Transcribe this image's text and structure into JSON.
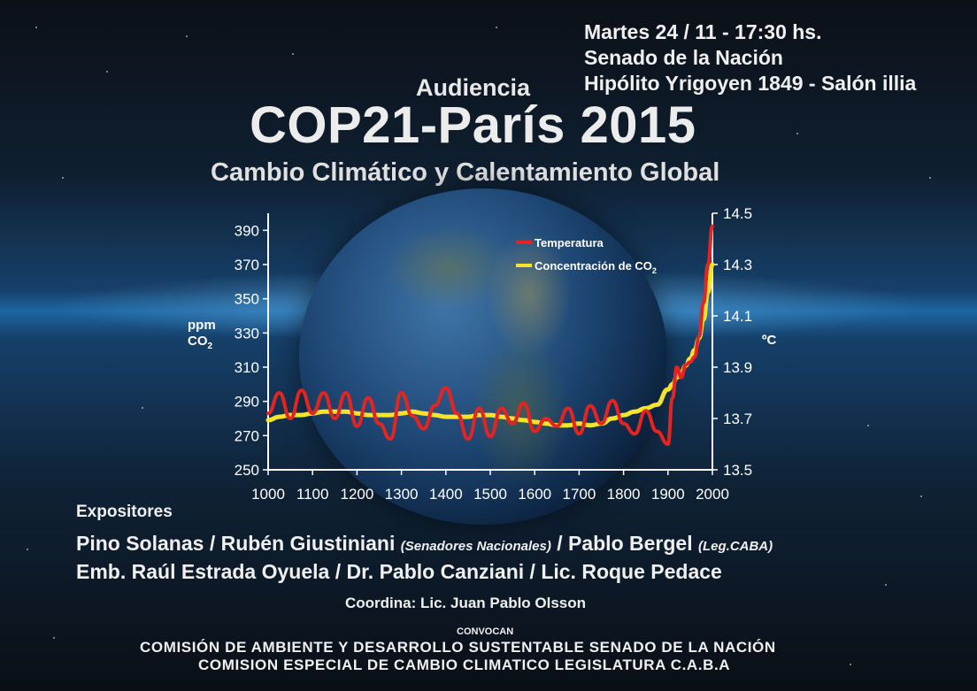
{
  "event": {
    "date_time": "Martes 24 / 11 - 17:30 hs.",
    "venue": "Senado de la Nación",
    "address": "Hipólito Yrigoyen 1849 - Salón illia"
  },
  "heading": {
    "pre_title": "Audiencia",
    "title": "COP21-París 2015",
    "subtitle": "Cambio Climático y Calentamiento Global"
  },
  "chart_data": {
    "type": "line",
    "x": [
      1000,
      1025,
      1050,
      1075,
      1100,
      1125,
      1150,
      1175,
      1200,
      1225,
      1250,
      1275,
      1300,
      1325,
      1350,
      1375,
      1400,
      1425,
      1450,
      1475,
      1500,
      1525,
      1550,
      1575,
      1600,
      1625,
      1650,
      1675,
      1700,
      1725,
      1750,
      1775,
      1800,
      1825,
      1850,
      1875,
      1900,
      1910,
      1920,
      1930,
      1940,
      1950,
      1960,
      1970,
      1980,
      1990,
      2000
    ],
    "xlim": [
      1000,
      2000
    ],
    "x_ticks": [
      1000,
      1100,
      1200,
      1300,
      1400,
      1500,
      1600,
      1700,
      1800,
      1900,
      2000
    ],
    "y_left": {
      "label_top": "ppm",
      "label_bottom": "CO",
      "label_sub": "2",
      "ylim": [
        250,
        400
      ],
      "ticks": [
        250,
        270,
        290,
        310,
        330,
        350,
        370,
        390
      ]
    },
    "y_right": {
      "label": "ºC",
      "ylim": [
        13.5,
        14.5
      ],
      "ticks": [
        "13.5",
        "13.7",
        "13.9",
        "14.1",
        "14.3",
        "14.5"
      ]
    },
    "series": [
      {
        "name": "Temperatura",
        "axis": "right",
        "color": "#e52421",
        "values": [
          13.72,
          13.8,
          13.7,
          13.81,
          13.72,
          13.8,
          13.7,
          13.8,
          13.67,
          13.78,
          13.68,
          13.62,
          13.8,
          13.71,
          13.66,
          13.75,
          13.82,
          13.72,
          13.62,
          13.74,
          13.63,
          13.74,
          13.68,
          13.76,
          13.65,
          13.7,
          13.67,
          13.74,
          13.64,
          13.75,
          13.68,
          13.77,
          13.68,
          13.64,
          13.73,
          13.65,
          13.6,
          13.78,
          13.9,
          13.86,
          13.91,
          13.92,
          13.94,
          14.02,
          14.15,
          14.3,
          14.45
        ]
      },
      {
        "name": "Concentración de CO",
        "name_sub": "2",
        "axis": "left",
        "color": "#f5e52a",
        "values": [
          279,
          281,
          282,
          282,
          283,
          284,
          284,
          284,
          283,
          282,
          282,
          282,
          283,
          284,
          283,
          282,
          281,
          281,
          281,
          282,
          282,
          281,
          280,
          279,
          278,
          277,
          276,
          276,
          277,
          276,
          277,
          280,
          282,
          284,
          286,
          288,
          297,
          300,
          304,
          307,
          311,
          315,
          320,
          327,
          338,
          354,
          370
        ]
      }
    ]
  },
  "speakers": {
    "heading": "Expositores",
    "line1_a": "Pino Solanas / Rubén Giustiniani",
    "line1_b": "(Senadores Nacionales)",
    "line1_c": "/ Pablo Bergel",
    "line1_d": "(Leg.CABA)",
    "line2": "Emb. Raúl Estrada Oyuela / Dr. Pablo Canziani / Lic. Roque Pedace",
    "coordinator": "Coordina: Lic. Juan Pablo Olsson"
  },
  "organizers": {
    "heading": "CONVOCAN",
    "org1": "COMISIÓN DE AMBIENTE Y DESARROLLO SUSTENTABLE SENADO DE LA NACIÓN",
    "org2": "COMISION ESPECIAL DE CAMBIO CLIMATICO LEGISLATURA C.A.B.A"
  },
  "colors": {
    "accent_red": "#e52421",
    "accent_yellow": "#f5e52a",
    "background_glow": "#1e66a3"
  }
}
